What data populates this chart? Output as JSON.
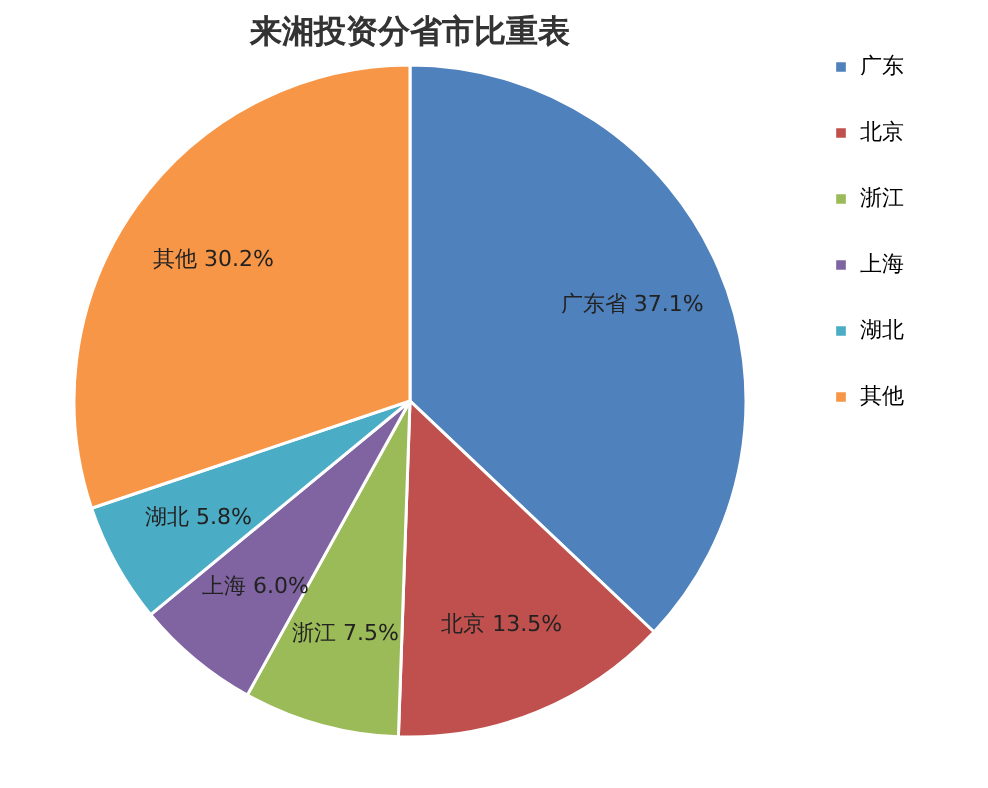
{
  "chart_data": {
    "type": "pie",
    "title": "来湘投资分省市比重表",
    "categories": [
      "广东",
      "北京",
      "浙江",
      "上海",
      "湖北",
      "其他"
    ],
    "values": [
      37.1,
      13.5,
      7.5,
      6.0,
      5.8,
      30.2
    ],
    "value_labels": [
      "广东省 37.1%",
      "北京 13.5%",
      "浙江 7.5%",
      "上海 6.0%",
      "湖北 5.8%",
      "其他 30.2%"
    ],
    "colors": [
      "#4f81bd",
      "#c0504d",
      "#9bbb59",
      "#8064a2",
      "#4bacc6",
      "#f79646"
    ],
    "legend": "right"
  }
}
